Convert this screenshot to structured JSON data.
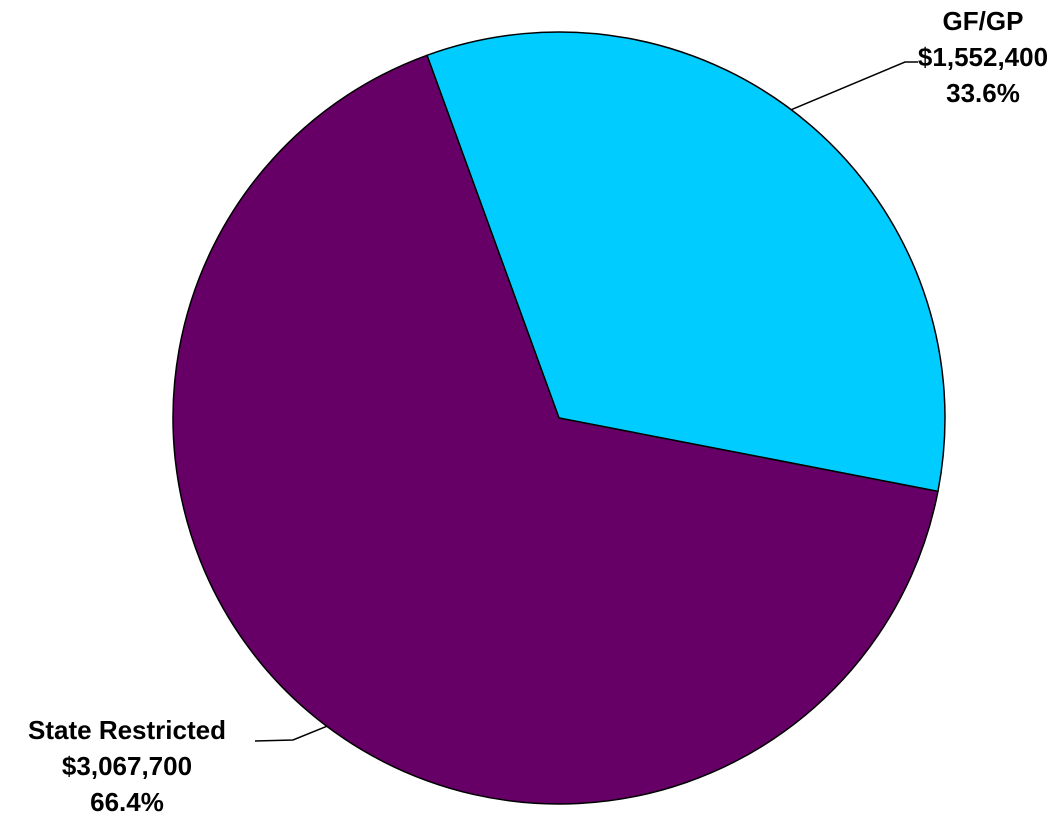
{
  "chart_data": {
    "type": "pie",
    "title": "",
    "slices": [
      {
        "name": "GF/GP",
        "value": 1552400,
        "value_label": "$1,552,400",
        "percent": 33.6,
        "percent_label": "33.6%",
        "color": "#00CCFF"
      },
      {
        "name": "State Restricted",
        "value": 3067700,
        "value_label": "$3,067,700",
        "percent": 66.4,
        "percent_label": "66.4%",
        "color": "#660066"
      }
    ],
    "start_angle_deg": -20,
    "direction": "clockwise",
    "outline_color": "#000000",
    "legend": "none",
    "data_labels": "outside-with-leader-lines"
  }
}
